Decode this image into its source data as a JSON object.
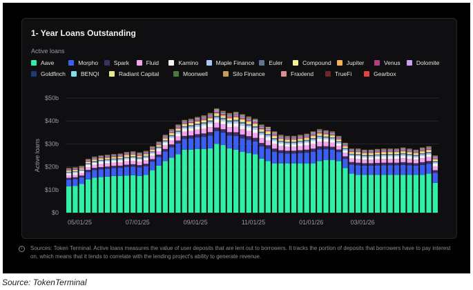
{
  "chart_data": {
    "type": "bar",
    "stacked": true,
    "title": "1- Year Loans Outstanding",
    "legend_title": "Active loans",
    "ylabel": "Active loans",
    "ylim": [
      0,
      50
    ],
    "y_ticks": [
      "$0",
      "$10b",
      "$20b",
      "$30b",
      "$40b",
      "$50b"
    ],
    "y_tick_values": [
      0,
      10,
      20,
      30,
      40,
      50
    ],
    "x_tick_labels": [
      {
        "label": "05/01/25",
        "index": 0
      },
      {
        "label": "07/01/25",
        "index": 9
      },
      {
        "label": "09/01/25",
        "index": 18
      },
      {
        "label": "11/01/25",
        "index": 27
      },
      {
        "label": "01/01/26",
        "index": 36
      },
      {
        "label": "03/01/26",
        "index": 44
      }
    ],
    "series": [
      {
        "name": "Aave",
        "color": "#2ff0a5"
      },
      {
        "name": "Morpho",
        "color": "#3d5ef2"
      },
      {
        "name": "Spark",
        "color": "#3b2f66"
      },
      {
        "name": "Fluid",
        "color": "#f7a3f0"
      },
      {
        "name": "Kamino",
        "color": "#f4f4f4"
      },
      {
        "name": "Maple Finance",
        "color": "#a9c8f5"
      },
      {
        "name": "Euler",
        "color": "#5f7490"
      },
      {
        "name": "Compound",
        "color": "#f4f096"
      },
      {
        "name": "Jupiter",
        "color": "#f3b35a"
      },
      {
        "name": "Venus",
        "color": "#b13f84"
      },
      {
        "name": "Dolomite",
        "color": "#c9a0ee"
      },
      {
        "name": "Goldfinch",
        "color": "#1f3a6e"
      },
      {
        "name": "BENQI",
        "color": "#7ee1e7"
      },
      {
        "name": "Radiant Capital",
        "color": "#e9e88a"
      },
      {
        "name": "Moonwell",
        "color": "#4a7a3a"
      },
      {
        "name": "Silo Finance",
        "color": "#c79a5a"
      },
      {
        "name": "Fraxlend",
        "color": "#d98f8a"
      },
      {
        "name": "TrueFi",
        "color": "#6a2a2a"
      },
      {
        "name": "Gearbox",
        "color": "#e0443c"
      }
    ],
    "totals": [
      19.5,
      19.8,
      20.5,
      23.5,
      24.5,
      25.0,
      25.3,
      25.6,
      25.8,
      26.5,
      26.8,
      26.3,
      27.0,
      29.0,
      31.0,
      34.0,
      36.5,
      38.5,
      40.5,
      41.0,
      41.8,
      42.5,
      43.5,
      45.5,
      44.5,
      43.5,
      44.0,
      43.0,
      42.0,
      41.0,
      38.5,
      37.5,
      35.5,
      34.0,
      33.5,
      33.5,
      34.0,
      34.5,
      35.5,
      36.5,
      36.0,
      35.5,
      33.5,
      30.5,
      28.0,
      28.0,
      27.5,
      27.5,
      27.8,
      28.0,
      28.0,
      28.0,
      28.5,
      28.0,
      27.5,
      28.5,
      29.0,
      25.0
    ],
    "aave": [
      11.5,
      11.7,
      12.5,
      14.5,
      15.3,
      15.5,
      15.7,
      16.0,
      16.0,
      16.2,
      16.3,
      16.0,
      16.5,
      18.5,
      20.5,
      22.5,
      24.0,
      25.5,
      27.5,
      27.5,
      27.8,
      27.8,
      28.0,
      30.0,
      29.5,
      28.0,
      27.5,
      26.5,
      26.0,
      25.5,
      23.5,
      22.5,
      21.5,
      21.5,
      21.5,
      21.5,
      21.5,
      21.5,
      21.5,
      22.5,
      23.0,
      23.0,
      22.5,
      19.5,
      17.0,
      16.5,
      16.5,
      16.5,
      16.5,
      16.5,
      16.5,
      16.5,
      16.5,
      16.5,
      16.5,
      16.5,
      17.0,
      13.0
    ]
  },
  "footnote": "Sources: Token Terminal. Active loans measures the value of user deposits that are lent out to borrowers. It tracks the portion of deposits that borrowers have to pay interest on, which means that it tends to correlate with the lending project's ability to generate revenue.",
  "source": "Source: TokenTerminal"
}
